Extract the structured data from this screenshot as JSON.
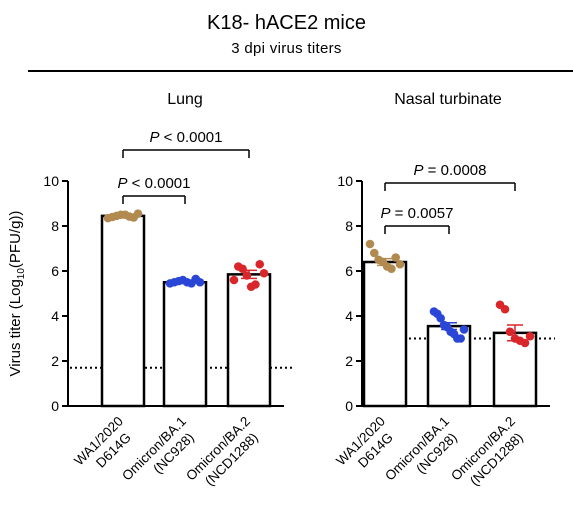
{
  "header": {
    "title": "K18- hACE2 mice",
    "subtitle": "3 dpi virus titers"
  },
  "chart_data": [
    {
      "type": "bar",
      "title": "Lung",
      "ylabel": "Virus titer (Log10(PFU/g))",
      "ylim": [
        0,
        10
      ],
      "yticks": [
        0,
        2,
        4,
        6,
        8,
        10
      ],
      "detection_limit": 1.7,
      "categories": [
        [
          "WA1/2020",
          "D614G"
        ],
        [
          "Omicron/BA.1",
          "(NC928)"
        ],
        [
          "Omicron/BA.2",
          "(NCD1288)"
        ]
      ],
      "colors": [
        "#b08a4e",
        "#2946d6",
        "#d8262a"
      ],
      "values": [
        8.45,
        5.5,
        5.85
      ],
      "errors": [
        0.05,
        0.06,
        0.18
      ],
      "points": [
        [
          8.35,
          8.4,
          8.45,
          8.5,
          8.5,
          8.42,
          8.38,
          8.55
        ],
        [
          5.45,
          5.5,
          5.55,
          5.6,
          5.5,
          5.45,
          5.65,
          5.5
        ],
        [
          5.6,
          6.2,
          6.1,
          5.8,
          5.3,
          5.4,
          6.3,
          5.9
        ]
      ],
      "significance": [
        {
          "from": 0,
          "to": 1,
          "label": "P < 0.0001"
        },
        {
          "from": 0,
          "to": 2,
          "label": "P < 0.0001"
        }
      ]
    },
    {
      "type": "bar",
      "title": "Nasal turbinate",
      "ylim": [
        0,
        10
      ],
      "yticks": [
        0,
        2,
        4,
        6,
        8,
        10
      ],
      "detection_limit": 3.0,
      "categories": [
        [
          "WA1/2020",
          "D614G"
        ],
        [
          "Omicron/BA.1",
          "(NC928)"
        ],
        [
          "Omicron/BA.2",
          "(NCD1288)"
        ]
      ],
      "colors": [
        "#b08a4e",
        "#2946d6",
        "#d8262a"
      ],
      "values": [
        6.4,
        3.55,
        3.25
      ],
      "errors": [
        0.15,
        0.15,
        0.35
      ],
      "points": [
        [
          7.2,
          6.8,
          6.5,
          6.4,
          6.2,
          6.1,
          6.6,
          6.3
        ],
        [
          4.2,
          4.1,
          3.9,
          3.6,
          3.5,
          3.3,
          3.2,
          3.0,
          3.0,
          3.4
        ],
        [
          4.5,
          4.3,
          3.3,
          3.0,
          2.9,
          2.8,
          3.1
        ]
      ],
      "significance": [
        {
          "from": 0,
          "to": 1,
          "label": "P = 0.0057"
        },
        {
          "from": 0,
          "to": 2,
          "label": "P = 0.0008"
        }
      ]
    }
  ]
}
